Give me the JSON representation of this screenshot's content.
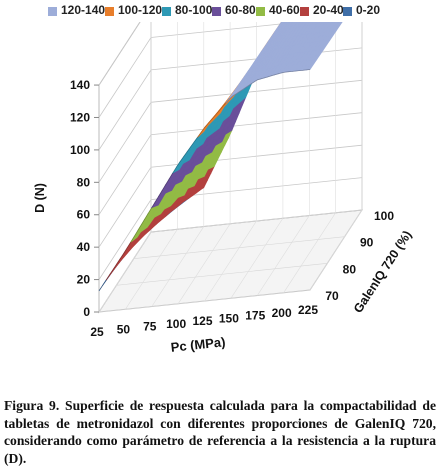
{
  "chart_data": {
    "type": "surface",
    "title": "",
    "xlabel": "Pc (MPa)",
    "ylabel": "GalenIQ 720 (%)",
    "zlabel": "D (N)",
    "x_ticks": [
      "25",
      "50",
      "75",
      "100",
      "125",
      "150",
      "175",
      "200",
      "225"
    ],
    "y_ticks": [
      "70",
      "80",
      "90",
      "100"
    ],
    "z_ticks": [
      "0",
      "20",
      "40",
      "60",
      "80",
      "100",
      "120",
      "140"
    ],
    "xlim": [
      25,
      225
    ],
    "ylim": [
      70,
      100
    ],
    "zlim": [
      0,
      140
    ],
    "legend_position": "top",
    "legend": [
      {
        "label": "120-140",
        "color": "#9dadd9"
      },
      {
        "label": "100-120",
        "color": "#e87e2b"
      },
      {
        "label": "80-100",
        "color": "#2e99b5"
      },
      {
        "label": "60-80",
        "color": "#6a4f9a"
      },
      {
        "label": "40-60",
        "color": "#92bb45"
      },
      {
        "label": "20-40",
        "color": "#b3403e"
      },
      {
        "label": "0-20",
        "color": "#3f6ea7"
      }
    ],
    "x": [
      25,
      50,
      75,
      100,
      125,
      150,
      175,
      200,
      225
    ],
    "z_surface_at_GalenIQ_70": [
      13,
      36,
      61,
      86,
      107,
      124,
      133,
      136,
      136
    ],
    "z_surface_at_GalenIQ_100": [
      12,
      14,
      24,
      55,
      92,
      123,
      134,
      134,
      134
    ]
  },
  "caption": "Figura 9. Superficie de respuesta calculada para la compactabilidad de tabletas de metronidazol con diferentes proporciones de GalenIQ 720, considerando como parámetro de referencia a la resistencia a la ruptura (D)."
}
